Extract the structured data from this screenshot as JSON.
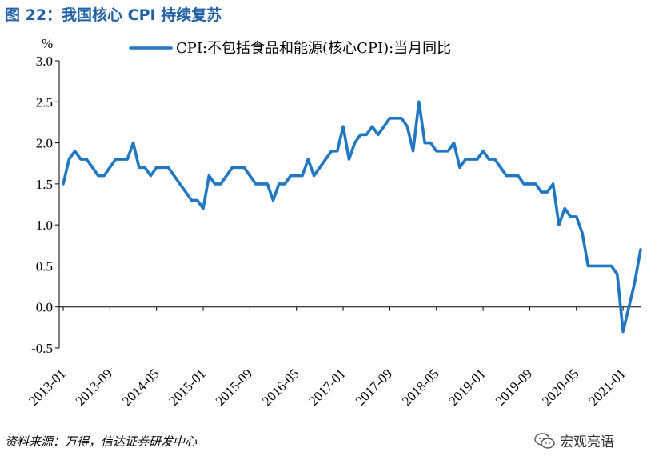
{
  "figure": {
    "title": "图 22：我国核心 CPI 持续复苏",
    "source": "资料来源：万得，信达证券研发中心",
    "watermark": "宏观亮语",
    "watermark_icon": "wechat-icon"
  },
  "chart_data": {
    "type": "line",
    "ylabel": "%",
    "ylim": [
      -0.5,
      3.0
    ],
    "yticks": [
      "-0.5",
      "0.0",
      "0.5",
      "1.0",
      "1.5",
      "2.0",
      "2.5",
      "3.0"
    ],
    "xlim": [
      "2013-01",
      "2021-04"
    ],
    "xticks": [
      "2013-01",
      "2013-09",
      "2014-05",
      "2015-01",
      "2015-09",
      "2016-05",
      "2017-01",
      "2017-09",
      "2018-05",
      "2019-01",
      "2019-09",
      "2020-05",
      "2021-01"
    ],
    "grid": false,
    "legend": "top-right",
    "color": "#1f77c4",
    "series": [
      {
        "name": "CPI:不包括食品和能源(核心CPI):当月同比",
        "x": [
          "2013-01",
          "2013-02",
          "2013-03",
          "2013-04",
          "2013-05",
          "2013-06",
          "2013-07",
          "2013-08",
          "2013-09",
          "2013-10",
          "2013-11",
          "2013-12",
          "2014-01",
          "2014-02",
          "2014-03",
          "2014-04",
          "2014-05",
          "2014-06",
          "2014-07",
          "2014-08",
          "2014-09",
          "2014-10",
          "2014-11",
          "2014-12",
          "2015-01",
          "2015-02",
          "2015-03",
          "2015-04",
          "2015-05",
          "2015-06",
          "2015-07",
          "2015-08",
          "2015-09",
          "2015-10",
          "2015-11",
          "2015-12",
          "2016-01",
          "2016-02",
          "2016-03",
          "2016-04",
          "2016-05",
          "2016-06",
          "2016-07",
          "2016-08",
          "2016-09",
          "2016-10",
          "2016-11",
          "2016-12",
          "2017-01",
          "2017-02",
          "2017-03",
          "2017-04",
          "2017-05",
          "2017-06",
          "2017-07",
          "2017-08",
          "2017-09",
          "2017-10",
          "2017-11",
          "2017-12",
          "2018-01",
          "2018-02",
          "2018-03",
          "2018-04",
          "2018-05",
          "2018-06",
          "2018-07",
          "2018-08",
          "2018-09",
          "2018-10",
          "2018-11",
          "2018-12",
          "2019-01",
          "2019-02",
          "2019-03",
          "2019-04",
          "2019-05",
          "2019-06",
          "2019-07",
          "2019-08",
          "2019-09",
          "2019-10",
          "2019-11",
          "2019-12",
          "2020-01",
          "2020-02",
          "2020-03",
          "2020-04",
          "2020-05",
          "2020-06",
          "2020-07",
          "2020-08",
          "2020-09",
          "2020-10",
          "2020-11",
          "2020-12",
          "2021-01",
          "2021-02",
          "2021-03",
          "2021-04"
        ],
        "values": [
          1.5,
          1.8,
          1.9,
          1.8,
          1.8,
          1.7,
          1.6,
          1.6,
          1.7,
          1.8,
          1.8,
          1.8,
          2.0,
          1.7,
          1.7,
          1.6,
          1.7,
          1.7,
          1.7,
          1.6,
          1.5,
          1.4,
          1.3,
          1.3,
          1.2,
          1.6,
          1.5,
          1.5,
          1.6,
          1.7,
          1.7,
          1.7,
          1.6,
          1.5,
          1.5,
          1.5,
          1.3,
          1.5,
          1.5,
          1.6,
          1.6,
          1.6,
          1.8,
          1.6,
          1.7,
          1.8,
          1.9,
          1.9,
          2.2,
          1.8,
          2.0,
          2.1,
          2.1,
          2.2,
          2.1,
          2.2,
          2.3,
          2.3,
          2.3,
          2.2,
          1.9,
          2.5,
          2.0,
          2.0,
          1.9,
          1.9,
          1.9,
          2.0,
          1.7,
          1.8,
          1.8,
          1.8,
          1.9,
          1.8,
          1.8,
          1.7,
          1.6,
          1.6,
          1.6,
          1.5,
          1.5,
          1.5,
          1.4,
          1.4,
          1.5,
          1.0,
          1.2,
          1.1,
          1.1,
          0.9,
          0.5,
          0.5,
          0.5,
          0.5,
          0.5,
          0.4,
          -0.3,
          0.0,
          0.3,
          0.7
        ]
      }
    ]
  }
}
